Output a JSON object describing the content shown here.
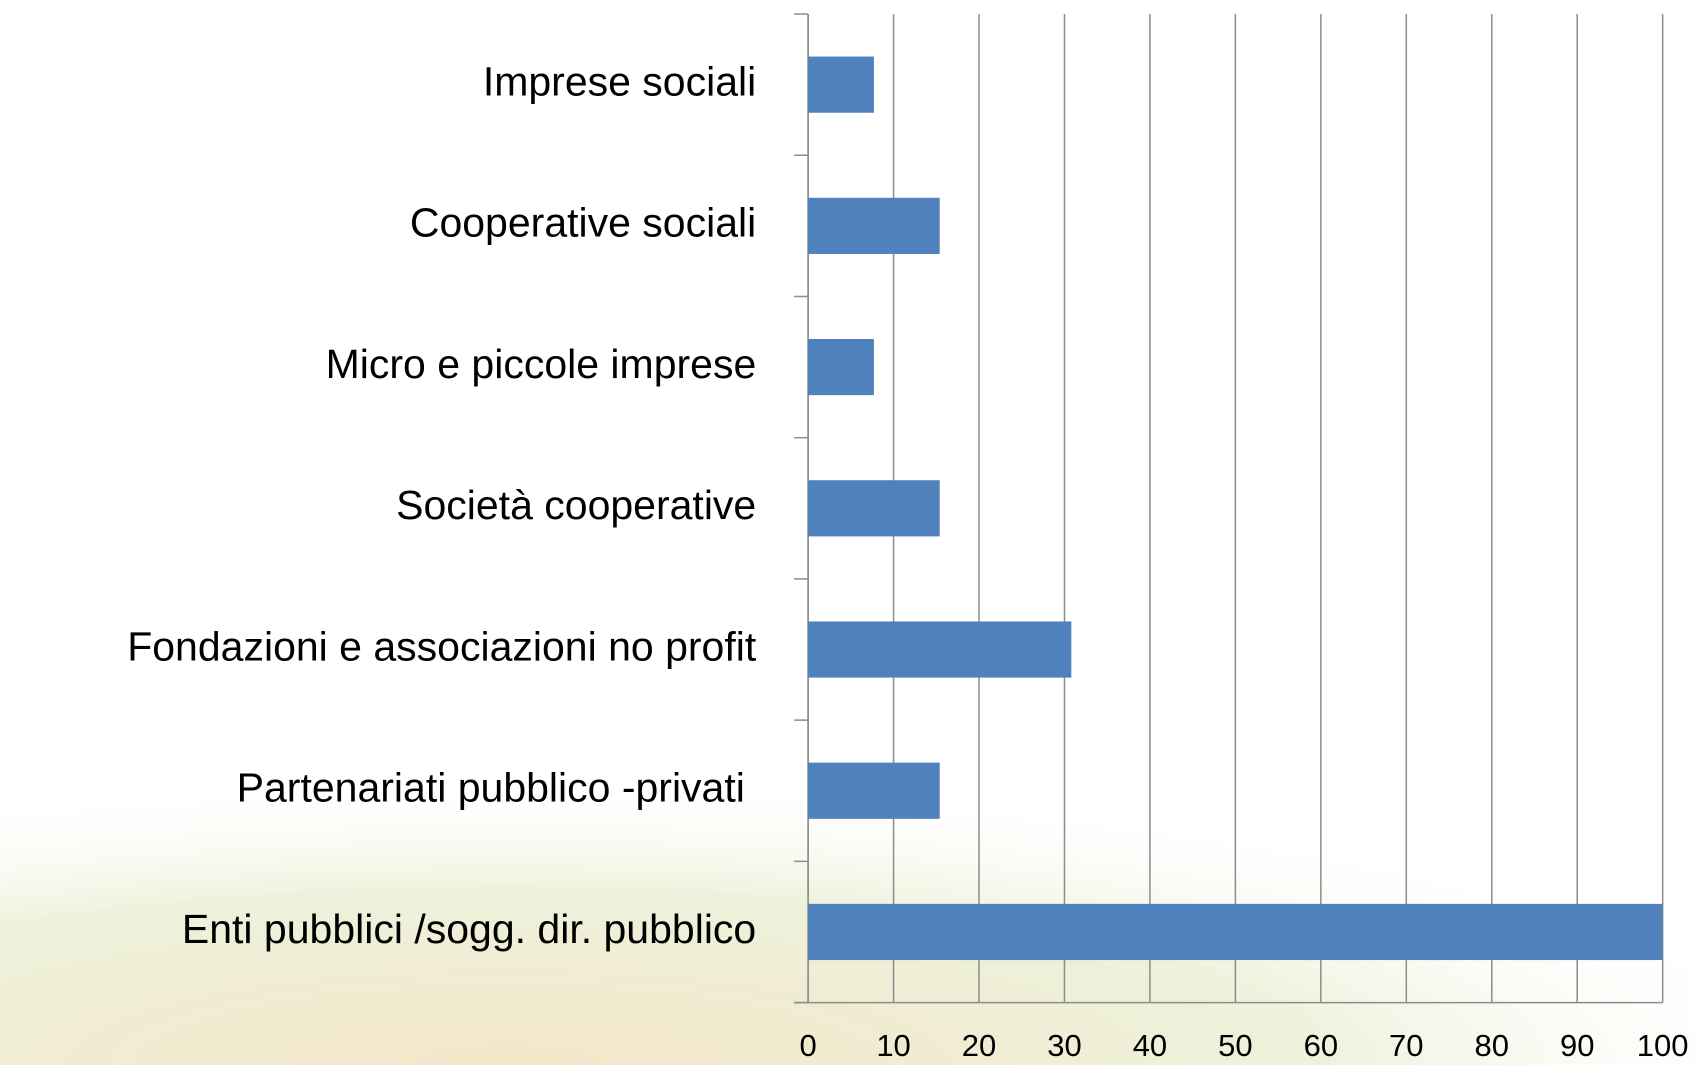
{
  "chart_data": {
    "type": "barh",
    "categories": [
      "Imprese sociali",
      "Cooperative sociali",
      "Micro e piccole imprese",
      "Società cooperative",
      "Fondazioni e associazioni no profit",
      "Partenariati pubblico -privati ",
      "Enti pubblici /sogg. dir. pubblico"
    ],
    "values": [
      7.7,
      15.4,
      7.7,
      15.4,
      30.8,
      15.4,
      100
    ],
    "color": "#4f81bd",
    "xlim": [
      0,
      100
    ],
    "xticks": [
      0,
      10,
      20,
      30,
      40,
      50,
      60,
      70,
      80,
      90,
      100
    ],
    "grid": true
  }
}
